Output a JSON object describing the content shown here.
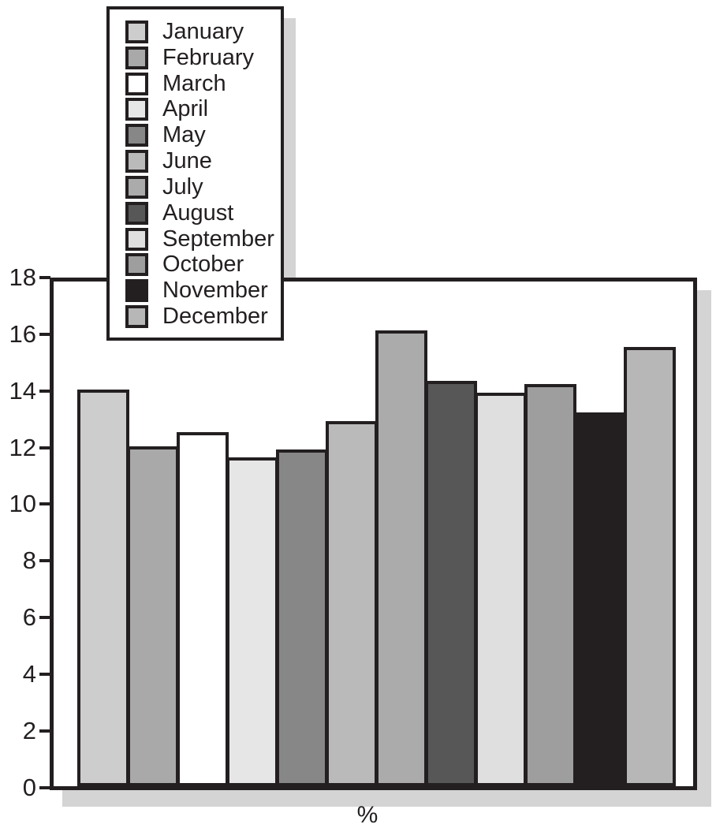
{
  "chart_data": {
    "type": "bar",
    "title": "",
    "xlabel": "%",
    "ylabel": "",
    "categories": [
      "January",
      "February",
      "March",
      "April",
      "May",
      "June",
      "July",
      "August",
      "September",
      "October",
      "November",
      "December"
    ],
    "values": [
      14.0,
      12.0,
      12.5,
      11.6,
      11.9,
      12.9,
      16.1,
      14.3,
      13.9,
      14.2,
      13.2,
      15.5
    ],
    "bar_colors": [
      "#cdcdcd",
      "#a9a9a9",
      "#ffffff",
      "#e6e6e6",
      "#878787",
      "#bababa",
      "#ababab",
      "#575757",
      "#dfdfdf",
      "#9e9e9e",
      "#231f20",
      "#b7b7b7"
    ],
    "ylim": [
      0,
      18
    ],
    "y_ticks": [
      0,
      2,
      4,
      6,
      8,
      10,
      12,
      14,
      16,
      18
    ],
    "grid": false,
    "legend_position": "top-left",
    "legend_entries": [
      "January",
      "February",
      "March",
      "April",
      "May",
      "June",
      "July",
      "August",
      "September",
      "October",
      "November",
      "December"
    ]
  },
  "colors": {
    "ink": "#231f20",
    "shadow": "#d4d4d4",
    "background": "#ffffff"
  }
}
